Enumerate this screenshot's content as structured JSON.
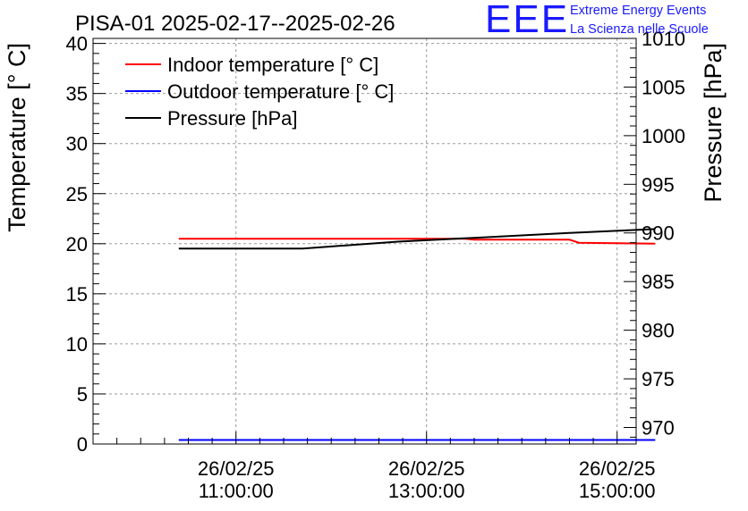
{
  "chart_data": {
    "type": "line",
    "title": "PISA-01 2025-02-17--2025-02-26",
    "logo": {
      "text": "EEE",
      "line1": "Extreme Energy Events",
      "line2": "La Scienza nelle Scuole",
      "color": "#1a1aff"
    },
    "x": {
      "unit": "hours",
      "range": [
        9.5,
        15.2
      ],
      "ticks": [
        {
          "value": 11,
          "date": "26/02/25",
          "time": "11:00:00"
        },
        {
          "value": 13,
          "date": "26/02/25",
          "time": "13:00:00"
        },
        {
          "value": 15,
          "date": "26/02/25",
          "time": "15:00:00"
        }
      ]
    },
    "y_left": {
      "label": "Temperature [° C]",
      "range": [
        0,
        40.5
      ],
      "ticks": [
        0,
        5,
        10,
        15,
        20,
        25,
        30,
        35,
        40
      ]
    },
    "y_right": {
      "label": "Pressure [hPa]",
      "range": [
        968.3,
        1010
      ],
      "ticks": [
        970,
        975,
        980,
        985,
        990,
        995,
        1000,
        1005,
        1010
      ]
    },
    "legend": {
      "position": "top-left",
      "entries": [
        {
          "label": "Indoor temperature [° C]",
          "color": "#ff0000"
        },
        {
          "label": "Outdoor temperature [° C]",
          "color": "#0000ff"
        },
        {
          "label": "Pressure [hPa]",
          "color": "#000000"
        }
      ]
    },
    "series": [
      {
        "name": "Indoor temperature [° C]",
        "axis": "left",
        "color": "#ff0000",
        "x": [
          10.4,
          13.4,
          13.5,
          14.5,
          14.6,
          15.4
        ],
        "values": [
          20.5,
          20.5,
          20.4,
          20.4,
          20.1,
          20.0
        ]
      },
      {
        "name": "Outdoor temperature [° C]",
        "axis": "left",
        "color": "#0000ff",
        "x": [
          10.4,
          15.4
        ],
        "values": [
          0.4,
          0.4
        ]
      },
      {
        "name": "Pressure [hPa]",
        "axis": "right",
        "color": "#000000",
        "x": [
          10.4,
          11.7,
          12.7,
          13.5,
          14.5,
          15.4
        ],
        "values": [
          988.4,
          988.4,
          989.1,
          989.5,
          990.0,
          990.4
        ]
      }
    ],
    "grid": true
  }
}
